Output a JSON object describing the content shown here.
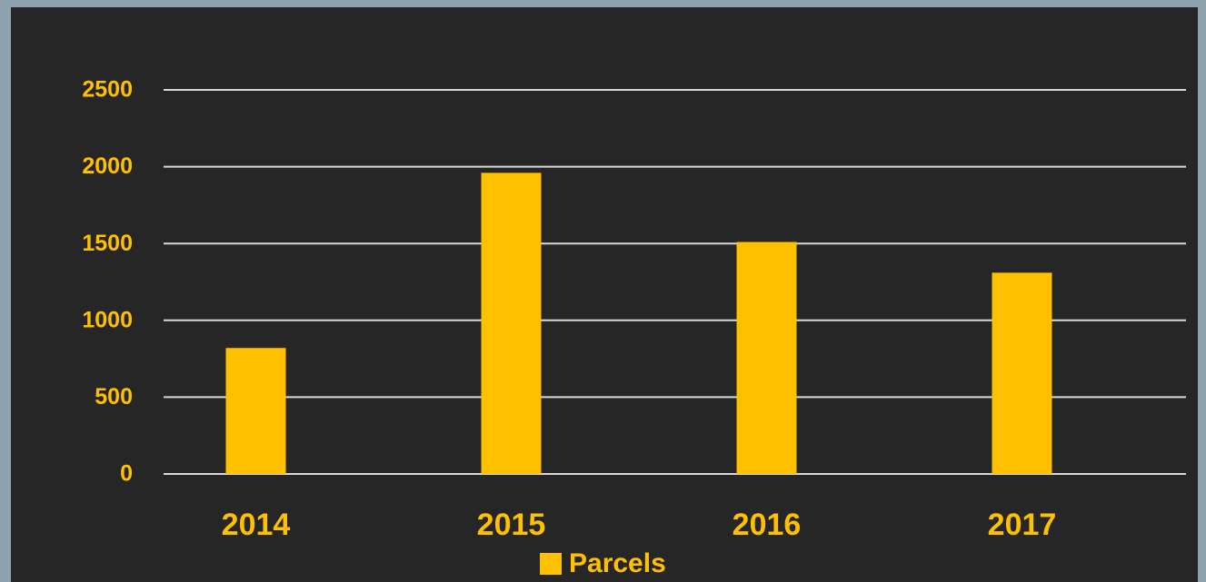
{
  "chart_data": {
    "type": "bar",
    "categories": [
      "2014",
      "2015",
      "2016",
      "2017"
    ],
    "series": [
      {
        "name": "Parcels",
        "color": "#ffc000",
        "values": [
          820,
          1960,
          1510,
          1310
        ]
      }
    ],
    "ylim": [
      0,
      2500
    ],
    "yticks": [
      0,
      500,
      1000,
      1500,
      2000,
      2500
    ],
    "grid": true,
    "legend": "bottom"
  }
}
